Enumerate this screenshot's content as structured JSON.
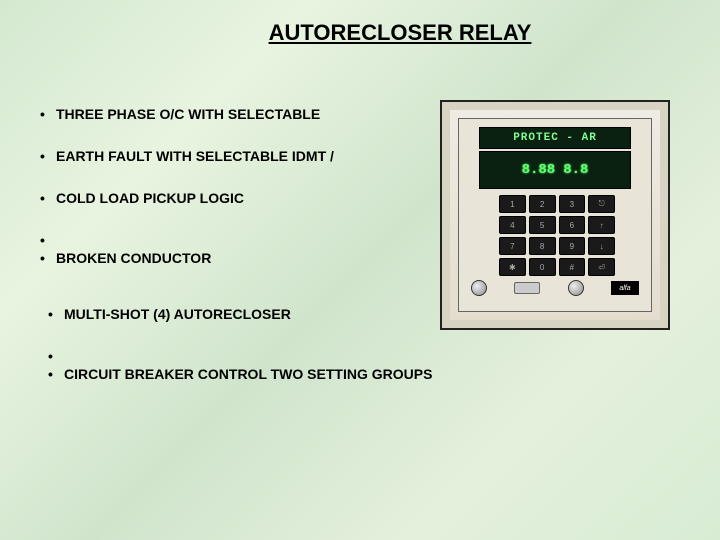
{
  "title": "AUTORECLOSER RELAY",
  "bullets_group1": [
    "THREE PHASE O/C WITH SELECTABLE",
    "EARTH FAULT WITH SELECTABLE IDMT /",
    "COLD LOAD PICKUP LOGIC",
    "",
    "BROKEN CONDUCTOR"
  ],
  "bullets_group2": [
    "MULTI-SHOT (4) AUTORECLOSER",
    "",
    "CIRCUIT BREAKER CONTROL   TWO SETTING GROUPS"
  ],
  "device": {
    "label": "PROTEC - AR",
    "display_segments": [
      "8.88",
      "8.8"
    ],
    "keypad": [
      "1",
      "2",
      "3",
      "⎋",
      "4",
      "5",
      "6",
      "↑",
      "7",
      "8",
      "9",
      "↓",
      "✱",
      "0",
      "#",
      "⏎"
    ],
    "brand": "alfa"
  },
  "colors": {
    "background_tint": "#d8ecd4",
    "text": "#000000",
    "led_green": "#5fff6f",
    "panel_dark": "#0a2010"
  }
}
